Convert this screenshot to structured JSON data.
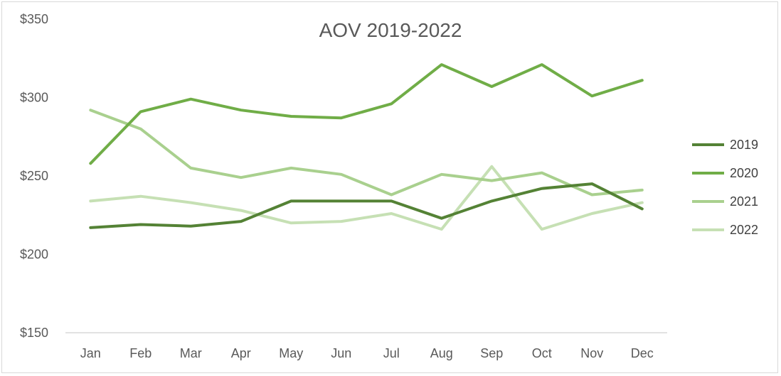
{
  "chart_data": {
    "type": "line",
    "title": "AOV 2019-2022",
    "xlabel": "",
    "ylabel": "",
    "categories": [
      "Jan",
      "Feb",
      "Mar",
      "Apr",
      "May",
      "Jun",
      "Jul",
      "Aug",
      "Sep",
      "Oct",
      "Nov",
      "Dec"
    ],
    "ylim": [
      150,
      350
    ],
    "yticks": [
      150,
      200,
      250,
      300,
      350
    ],
    "ytick_labels": [
      "$150",
      "$200",
      "$250",
      "$300",
      "$350"
    ],
    "grid": false,
    "legend_position": "right",
    "series": [
      {
        "name": "2019",
        "color": "#548235",
        "values": [
          217,
          219,
          218,
          221,
          234,
          234,
          234,
          223,
          234,
          242,
          245,
          229
        ]
      },
      {
        "name": "2020",
        "color": "#70ad47",
        "values": [
          258,
          291,
          299,
          292,
          288,
          287,
          296,
          321,
          307,
          321,
          301,
          311
        ]
      },
      {
        "name": "2021",
        "color": "#a9d08e",
        "values": [
          292,
          280,
          255,
          249,
          255,
          251,
          238,
          251,
          247,
          252,
          238,
          241
        ]
      },
      {
        "name": "2022",
        "color": "#c6e0b4",
        "values": [
          234,
          237,
          233,
          228,
          220,
          221,
          226,
          216,
          256,
          216,
          226,
          233
        ]
      }
    ]
  }
}
